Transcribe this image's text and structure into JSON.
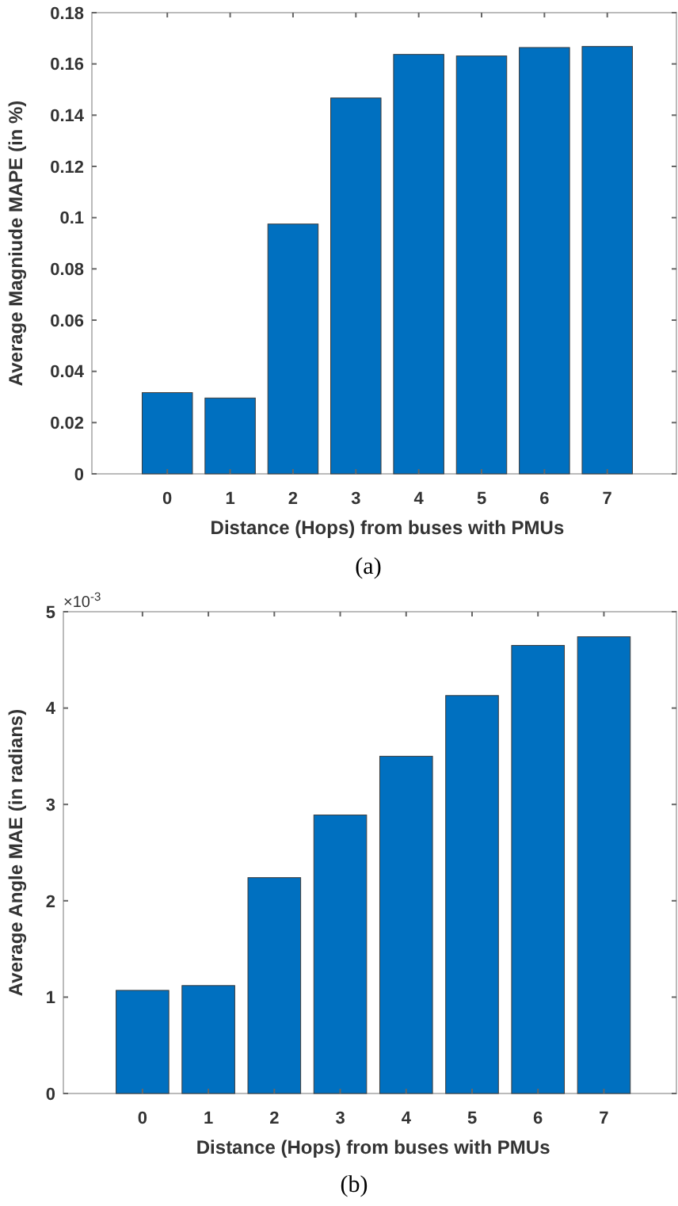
{
  "chart_data": [
    {
      "type": "bar",
      "xlabel": "Distance (Hops) from buses with PMUs",
      "ylabel": "Average Magniude MAPE (in %)",
      "categories": [
        "0",
        "1",
        "2",
        "3",
        "4",
        "5",
        "6",
        "7"
      ],
      "values": [
        0.0317,
        0.0296,
        0.0975,
        0.1467,
        0.1637,
        0.1631,
        0.1664,
        0.1668
      ],
      "color": "#0070c0",
      "ylim": [
        0,
        0.18
      ],
      "yticks": [
        0,
        0.02,
        0.04,
        0.06,
        0.08,
        0.1,
        0.12,
        0.14,
        0.16,
        0.18
      ],
      "grid": false,
      "annotations": [
        "(a)"
      ]
    },
    {
      "type": "bar",
      "xlabel": "Distance (Hops) from buses with PMUs",
      "ylabel": "Average Angle MAE (in radians)",
      "categories": [
        "0",
        "1",
        "2",
        "3",
        "4",
        "5",
        "6",
        "7"
      ],
      "values": [
        1.07,
        1.12,
        2.24,
        2.89,
        3.5,
        4.13,
        4.65,
        4.74
      ],
      "color": "#0070c0",
      "ylim": [
        0,
        5
      ],
      "yticks": [
        0,
        1,
        2,
        3,
        4,
        5
      ],
      "grid": false,
      "annotations": [
        "×10$^{-3}$",
        "(b)"
      ]
    }
  ]
}
